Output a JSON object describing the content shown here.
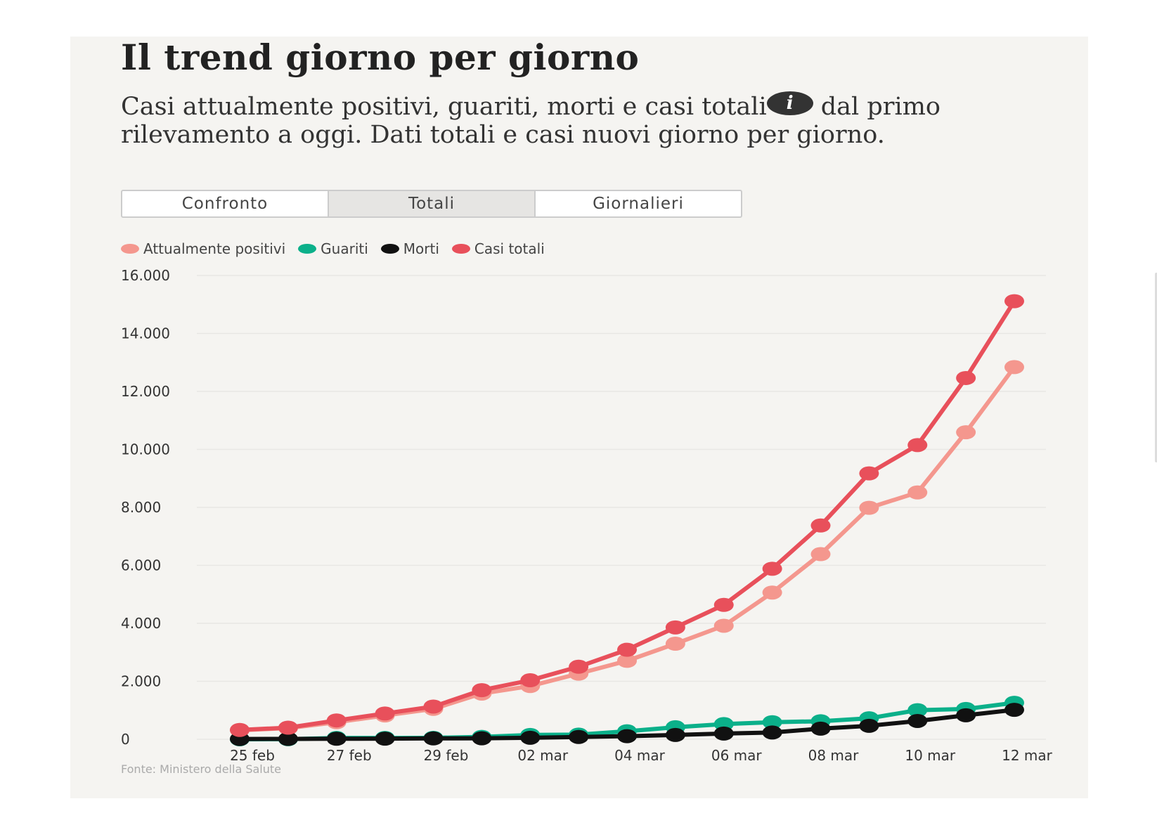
{
  "title": "Il trend giorno per giorno",
  "subtitle": {
    "before_info": "Casi attualmente positivi, guariti, morti e casi totali",
    "info_icon": "i",
    "after_info": " dal primo rilevamento a oggi. Dati totali e casi nuovi giorno per giorno."
  },
  "tabs": [
    {
      "label": "Confronto",
      "active": false
    },
    {
      "label": "Totali",
      "active": true
    },
    {
      "label": "Giornalieri",
      "active": false
    }
  ],
  "source": "Fonte: Ministero della Salute",
  "chart_data": {
    "type": "line",
    "x": [
      "25 feb",
      "26 feb",
      "27 feb",
      "28 feb",
      "29 feb",
      "01 mar",
      "02 mar",
      "03 mar",
      "04 mar",
      "05 mar",
      "06 mar",
      "07 mar",
      "08 mar",
      "09 mar",
      "10 mar",
      "11 mar",
      "12 mar"
    ],
    "x_tick_labels": [
      "25 feb",
      "27 feb",
      "29 feb",
      "02 mar",
      "04 mar",
      "06 mar",
      "08 mar",
      "10 mar",
      "12 mar"
    ],
    "y_tick_labels": [
      "0",
      "2.000",
      "4.000",
      "6.000",
      "8.000",
      "10.000",
      "12.000",
      "14.000",
      "16.000"
    ],
    "y_ticks": [
      0,
      2000,
      4000,
      6000,
      8000,
      10000,
      12000,
      14000,
      16000
    ],
    "ylim": [
      0,
      16000
    ],
    "grid": true,
    "legend_position": "top-left",
    "series": [
      {
        "name": "Attualmente positivi",
        "color": "#f4978e",
        "values": [
          311,
          385,
          588,
          821,
          1049,
          1577,
          1835,
          2263,
          2706,
          3296,
          3916,
          5061,
          6387,
          7985,
          8514,
          10590,
          12839
        ]
      },
      {
        "name": "Guariti",
        "color": "#0bb08a",
        "values": [
          1,
          3,
          45,
          46,
          50,
          83,
          149,
          160,
          276,
          414,
          523,
          589,
          622,
          724,
          1004,
          1045,
          1258
        ]
      },
      {
        "name": "Morti",
        "color": "#111111",
        "values": [
          10,
          12,
          17,
          21,
          29,
          34,
          52,
          79,
          107,
          148,
          197,
          233,
          366,
          463,
          631,
          827,
          1016
        ]
      },
      {
        "name": "Casi totali",
        "color": "#e8505b",
        "values": [
          322,
          400,
          650,
          888,
          1128,
          1694,
          2036,
          2502,
          3089,
          3858,
          4636,
          5883,
          7375,
          9172,
          10149,
          12462,
          15113
        ]
      }
    ]
  }
}
